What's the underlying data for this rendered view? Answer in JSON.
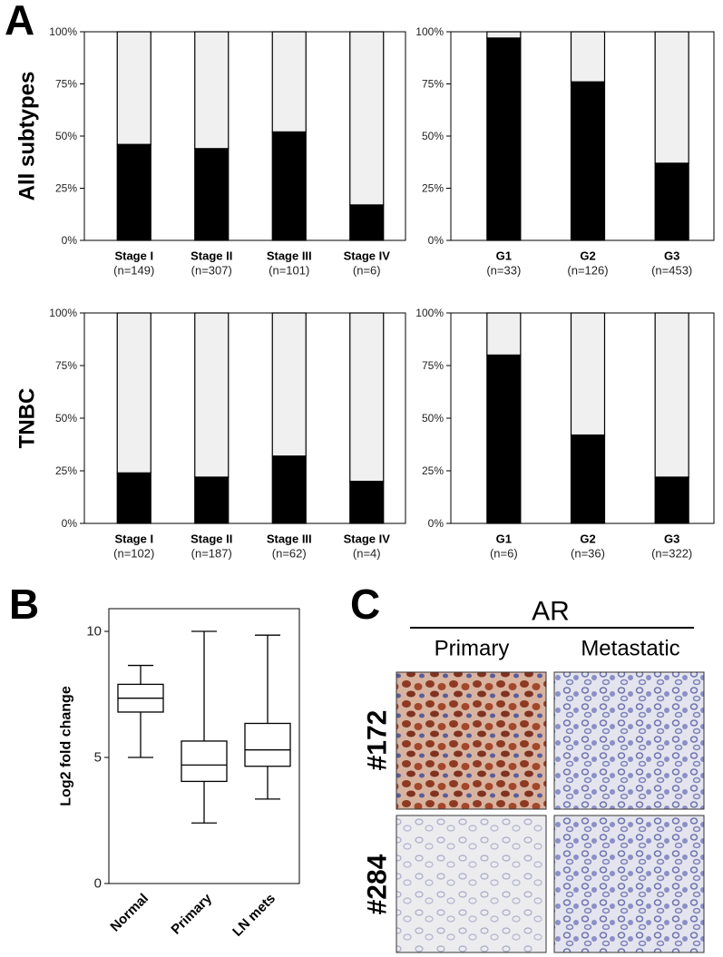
{
  "panel_labels": [
    "A",
    "B",
    "C"
  ],
  "row_labels": [
    "All subtypes",
    "TNBC"
  ],
  "chart_data": [
    {
      "type": "bar",
      "stacked": true,
      "categories": [
        "Stage I",
        "Stage II",
        "Stage III",
        "Stage IV"
      ],
      "sublabels": [
        "(n=149)",
        "(n=307)",
        "(n=101)",
        "(n=6)"
      ],
      "series": [
        {
          "color": "#000000",
          "values": [
            46,
            44,
            52,
            17
          ]
        },
        {
          "color": "#f0f0f0",
          "values": [
            54,
            56,
            48,
            83
          ]
        }
      ],
      "ylim": [
        0,
        100
      ],
      "yticks": [
        {
          "value": 0,
          "label": "0%"
        },
        {
          "value": 25,
          "label": "25%"
        },
        {
          "value": 50,
          "label": "50%"
        },
        {
          "value": 75,
          "label": "75%"
        },
        {
          "value": 100,
          "label": "100%"
        }
      ]
    },
    {
      "type": "bar",
      "stacked": true,
      "categories": [
        "G1",
        "G2",
        "G3"
      ],
      "sublabels": [
        "(n=33)",
        "(n=126)",
        "(n=453)"
      ],
      "series": [
        {
          "color": "#000000",
          "values": [
            97,
            76,
            37
          ]
        },
        {
          "color": "#f0f0f0",
          "values": [
            3,
            24,
            63
          ]
        }
      ],
      "ylim": [
        0,
        100
      ],
      "yticks": [
        {
          "value": 0,
          "label": "0%"
        },
        {
          "value": 25,
          "label": "25%"
        },
        {
          "value": 50,
          "label": "50%"
        },
        {
          "value": 75,
          "label": "75%"
        },
        {
          "value": 100,
          "label": "100%"
        }
      ]
    },
    {
      "type": "bar",
      "stacked": true,
      "categories": [
        "Stage I",
        "Stage II",
        "Stage III",
        "Stage IV"
      ],
      "sublabels": [
        "(n=102)",
        "(n=187)",
        "(n=62)",
        "(n=4)"
      ],
      "series": [
        {
          "color": "#000000",
          "values": [
            24,
            22,
            32,
            20
          ]
        },
        {
          "color": "#f0f0f0",
          "values": [
            76,
            78,
            68,
            80
          ]
        }
      ],
      "ylim": [
        0,
        100
      ],
      "yticks": [
        {
          "value": 0,
          "label": "0%"
        },
        {
          "value": 25,
          "label": "25%"
        },
        {
          "value": 50,
          "label": "50%"
        },
        {
          "value": 75,
          "label": "75%"
        },
        {
          "value": 100,
          "label": "100%"
        }
      ]
    },
    {
      "type": "bar",
      "stacked": true,
      "categories": [
        "G1",
        "G2",
        "G3"
      ],
      "sublabels": [
        "(n=6)",
        "(n=36)",
        "(n=322)"
      ],
      "series": [
        {
          "color": "#000000",
          "values": [
            80,
            42,
            22
          ]
        },
        {
          "color": "#f0f0f0",
          "values": [
            20,
            58,
            78
          ]
        }
      ],
      "ylim": [
        0,
        100
      ],
      "yticks": [
        {
          "value": 0,
          "label": "0%"
        },
        {
          "value": 25,
          "label": "25%"
        },
        {
          "value": 50,
          "label": "50%"
        },
        {
          "value": 75,
          "label": "75%"
        },
        {
          "value": 100,
          "label": "100%"
        }
      ]
    },
    {
      "type": "box",
      "ylabel": "Log2 fold change",
      "color": "#ffffff",
      "categories": [
        "Normal",
        "Primary",
        "LN mets"
      ],
      "min": [
        5.0,
        2.4,
        3.35
      ],
      "q1": [
        6.8,
        4.05,
        4.65
      ],
      "median": [
        7.35,
        4.7,
        5.3
      ],
      "q3": [
        7.9,
        5.65,
        6.35
      ],
      "max": [
        8.65,
        10.0,
        9.85
      ],
      "ylim": [
        0,
        10.9
      ],
      "yticks": [
        0,
        5,
        10
      ]
    }
  ],
  "panel_c": {
    "title": "AR",
    "columns": [
      "Primary",
      "Metastatic"
    ],
    "rows": [
      "#172",
      "#284"
    ]
  }
}
